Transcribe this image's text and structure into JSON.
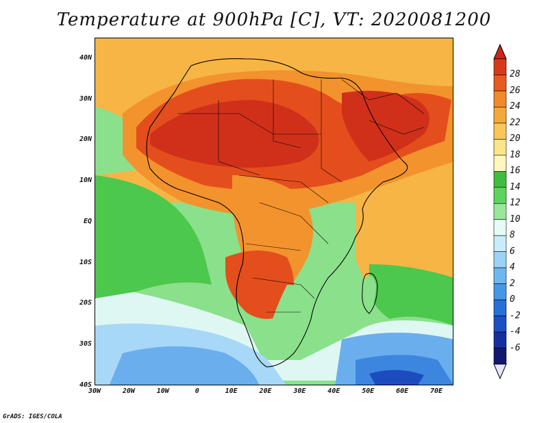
{
  "title": "Temperature at 900hPa [C], VT: 2020081200",
  "credit": "GrADS: IGES/COLA",
  "map": {
    "lat_ticks": [
      "40N",
      "30N",
      "20N",
      "10N",
      "EQ",
      "10S",
      "20S",
      "30S",
      "40S"
    ],
    "lon_ticks": [
      "30W",
      "20W",
      "10W",
      "0",
      "10E",
      "20E",
      "30E",
      "40E",
      "50E",
      "60E",
      "70E"
    ],
    "lat_range": [
      -40,
      45
    ],
    "lon_range": [
      -30,
      75
    ],
    "region": "Africa"
  },
  "colorbar": {
    "labels": [
      "28",
      "26",
      "24",
      "22",
      "20",
      "18",
      "16",
      "14",
      "12",
      "10",
      "8",
      "6",
      "4",
      "2",
      "0",
      "-2",
      "-4",
      "-6"
    ],
    "colors": [
      "#d73a1a",
      "#e85a1f",
      "#f08a2a",
      "#f5a83a",
      "#f9c65a",
      "#fbe489",
      "#fff7be",
      "#3ebd3e",
      "#5fd35f",
      "#98e898",
      "#e6fbf5",
      "#c9ecfb",
      "#9bd3f6",
      "#6db7ef",
      "#4597e6",
      "#2571d9",
      "#1c4fc4",
      "#172f9e",
      "#11196e"
    ],
    "cap_top": "#c8271a",
    "cap_bottom": "#e6e6ff"
  },
  "palette": {
    "deep_red": "#d0301a",
    "red": "#e44e1d",
    "orange_red": "#ed6e22",
    "orange": "#f2932d",
    "light_orange": "#f6b545",
    "yellow": "#fbd36a",
    "pale_yellow": "#fdeea0",
    "green": "#4cc84c",
    "light_green": "#8be08b",
    "pale_green": "#c7f2c7",
    "pale_cyan": "#dff7f3",
    "light_blue": "#a8d8f7",
    "blue": "#6aaeed",
    "mid_blue": "#3c86df",
    "dark_blue": "#1d4cbf"
  }
}
